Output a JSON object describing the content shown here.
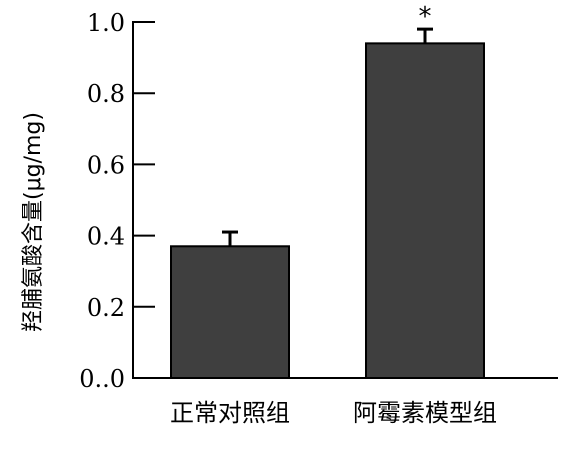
{
  "chart_data": {
    "type": "bar",
    "categories": [
      "正常对照组",
      "阿霉素模型组"
    ],
    "values": [
      0.37,
      0.94
    ],
    "errors": [
      0.04,
      0.04
    ],
    "annotations": [
      "",
      "*"
    ],
    "ylabel": "羟脯氨酸含量(μg/mg)",
    "xlabel": "",
    "ylim": [
      0,
      1.0
    ],
    "yticks": [
      0,
      0.2,
      0.4,
      0.6,
      0.8,
      1.0
    ],
    "ytick_labels": [
      "0..0",
      "0.2",
      "0.4",
      "0.6",
      "0.8",
      "1.0"
    ],
    "bar_color": "#3f3f3f",
    "grid": false
  }
}
